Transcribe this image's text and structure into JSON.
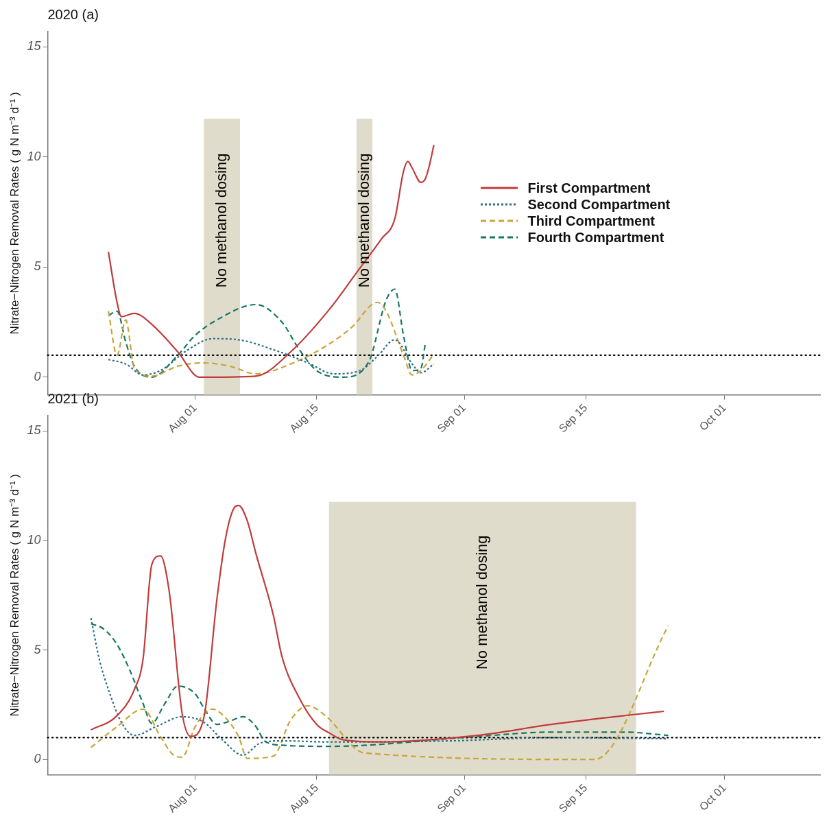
{
  "chart_data": [
    {
      "type": "line",
      "title": "2020 (a)",
      "ylabel": "Nitrate−Nitrogen Removal Rates ( g N m⁻³ d⁻¹ )",
      "xlim": [
        "2020-07-15",
        "2020-10-12"
      ],
      "xticks": [
        {
          "value": "2020-08-01",
          "label": "Aug 01"
        },
        {
          "value": "2020-08-15",
          "label": "Aug 15"
        },
        {
          "value": "2020-09-01",
          "label": "Sep 01"
        },
        {
          "value": "2020-09-15",
          "label": "Sep 15"
        },
        {
          "value": "2020-10-01",
          "label": "Oct 01"
        }
      ],
      "ylim": [
        -0.8,
        15.7
      ],
      "yticks": [
        0,
        5,
        10,
        15
      ],
      "grid": false,
      "legend": "right",
      "series": [
        {
          "name": "First Compartment",
          "color": "#c23b3b",
          "line_style": "solid",
          "x": [
            "2020-07-22",
            "2020-07-23",
            "2020-07-23T12:00",
            "2020-07-25",
            "2020-07-27",
            "2020-07-30",
            "2020-08-01T12:00",
            "2020-08-08",
            "2020-08-12",
            "2020-08-16T12:00",
            "2020-08-19T12:00",
            "2020-08-22T12:00",
            "2020-08-24",
            "2020-08-25",
            "2020-08-25T12:00",
            "2020-08-26",
            "2020-08-27",
            "2020-08-27T12:00",
            "2020-08-28",
            "2020-08-28T12:00"
          ],
          "values": [
            5.7,
            3.4,
            2.75,
            2.9,
            2.4,
            1.15,
            0,
            0.05,
            1.15,
            3.1,
            4.7,
            6.3,
            7.2,
            9.35,
            9.8,
            9.5,
            8.85,
            9.0,
            9.65,
            10.55
          ]
        },
        {
          "name": "Second Compartment",
          "color": "#2b6f8c",
          "line_style": "dotted",
          "x": [
            "2020-07-22",
            "2020-07-24",
            "2020-07-26",
            "2020-07-28",
            "2020-07-31",
            "2020-08-03",
            "2020-08-06",
            "2020-08-10",
            "2020-08-14",
            "2020-08-17",
            "2020-08-20",
            "2020-08-22",
            "2020-08-24",
            "2020-08-26",
            "2020-08-27",
            "2020-08-28T12:00"
          ],
          "values": [
            0.8,
            0.6,
            0.1,
            0.3,
            1.2,
            1.75,
            1.7,
            1.25,
            0.65,
            0.15,
            0.3,
            0.95,
            1.7,
            0.6,
            0.2,
            0.6
          ]
        },
        {
          "name": "Third Compartment",
          "color": "#c9a43c",
          "line_style": "dashed",
          "x": [
            "2020-07-22",
            "2020-07-23",
            "2020-07-24",
            "2020-07-25",
            "2020-07-27",
            "2020-07-30",
            "2020-08-02",
            "2020-08-05",
            "2020-08-08",
            "2020-08-12",
            "2020-08-16",
            "2020-08-19",
            "2020-08-22",
            "2020-08-23",
            "2020-08-25",
            "2020-08-26",
            "2020-08-27",
            "2020-08-28T12:00"
          ],
          "values": [
            3.0,
            1.0,
            2.6,
            0.4,
            0.05,
            0.5,
            0.65,
            0.5,
            0.15,
            0.6,
            1.4,
            2.25,
            3.4,
            3.0,
            1.0,
            0.1,
            0.3,
            1.05
          ]
        },
        {
          "name": "Fourth Compartment",
          "color": "#17785f",
          "line_style": "dashed",
          "x": [
            "2020-07-22",
            "2020-07-23",
            "2020-07-24",
            "2020-07-25",
            "2020-07-27",
            "2020-07-30",
            "2020-08-01",
            "2020-08-03T12:00",
            "2020-08-08",
            "2020-08-11",
            "2020-08-13",
            "2020-08-15",
            "2020-08-18",
            "2020-08-21",
            "2020-08-23",
            "2020-08-24",
            "2020-08-25",
            "2020-08-26",
            "2020-08-27",
            "2020-08-27T12:00"
          ],
          "values": [
            2.8,
            3.0,
            1.6,
            0.5,
            0,
            1.0,
            1.9,
            2.6,
            3.3,
            2.5,
            1.25,
            0.3,
            0,
            0.7,
            3.5,
            4.0,
            1.9,
            0.3,
            0.4,
            1.5
          ]
        }
      ],
      "ref_lines": [
        {
          "axis": "y",
          "value": 1,
          "color": "#000000",
          "line_style": "dotted"
        }
      ],
      "bands": [
        {
          "axis": "x",
          "from": "2020-08-02",
          "to": "2020-08-06T04:00",
          "label": "No methanol dosing",
          "color": "#e0dccb"
        },
        {
          "axis": "x",
          "from": "2020-08-19T14:00",
          "to": "2020-08-21T10:00",
          "label": "No methanol dosing",
          "color": "#e0dccb"
        }
      ]
    },
    {
      "type": "line",
      "title": "2021 (b)",
      "ylabel": "Nitrate−Nitrogen Removal Rates ( g N m⁻³ d⁻¹ )",
      "xlim": [
        "2021-07-15",
        "2021-10-12"
      ],
      "xticks": [
        {
          "value": "2021-08-01",
          "label": "Aug 01"
        },
        {
          "value": "2021-08-15",
          "label": "Aug 15"
        },
        {
          "value": "2021-09-01",
          "label": "Sep 01"
        },
        {
          "value": "2021-09-15",
          "label": "Sep 15"
        },
        {
          "value": "2021-10-01",
          "label": "Oct 01"
        }
      ],
      "ylim": [
        -0.7,
        15.7
      ],
      "yticks": [
        0,
        5,
        10,
        15
      ],
      "grid": false,
      "series": [
        {
          "color": "#c23b3b",
          "line_style": "solid",
          "x": [
            "2021-07-20",
            "2021-07-23",
            "2021-07-25",
            "2021-07-26",
            "2021-07-27",
            "2021-07-28",
            "2021-07-29",
            "2021-07-30T12:00",
            "2021-07-31T12:00",
            "2021-08-02",
            "2021-08-03T12:00",
            "2021-08-04T12:00",
            "2021-08-05T12:00",
            "2021-08-06",
            "2021-08-07",
            "2021-08-08",
            "2021-08-10",
            "2021-08-11",
            "2021-08-13",
            "2021-08-15",
            "2021-08-16T12:00",
            "2021-08-18",
            "2021-08-22",
            "2021-09-02T12:00",
            "2021-09-11",
            "2021-09-20T12:00",
            "2021-09-24"
          ],
          "values": [
            1.35,
            2.0,
            3.2,
            4.6,
            8.9,
            9.3,
            7.7,
            2.1,
            1.05,
            1.9,
            7.3,
            10.1,
            11.5,
            11.6,
            10.9,
            9.4,
            6.6,
            4.7,
            2.8,
            1.6,
            1.2,
            0.9,
            0.8,
            1.1,
            1.6,
            2.05,
            2.2
          ]
        },
        {
          "color": "#2b6f8c",
          "line_style": "dotted",
          "x": [
            "2021-07-20",
            "2021-07-21",
            "2021-07-22",
            "2021-07-23T12:00",
            "2021-07-25",
            "2021-07-27T12:00",
            "2021-07-30T12:00",
            "2021-08-02",
            "2021-08-04",
            "2021-08-06T12:00",
            "2021-08-08T12:00",
            "2021-08-11",
            "2021-08-16T12:00",
            "2021-08-30T12:00",
            "2021-09-11",
            "2021-09-24T12:00"
          ],
          "values": [
            6.45,
            4.5,
            3.2,
            1.7,
            1.1,
            1.5,
            1.95,
            1.7,
            0.95,
            0.2,
            0.75,
            0.85,
            0.8,
            0.85,
            1.0,
            0.95
          ]
        },
        {
          "color": "#c9a43c",
          "line_style": "dashed",
          "x": [
            "2021-07-20",
            "2021-07-23",
            "2021-07-26",
            "2021-07-28",
            "2021-07-29T12:00",
            "2021-07-30T12:00",
            "2021-08-01",
            "2021-08-03",
            "2021-08-04T12:00",
            "2021-08-06",
            "2021-08-07",
            "2021-08-10",
            "2021-08-12",
            "2021-08-14",
            "2021-08-16",
            "2021-08-20T12:00",
            "2021-09-16",
            "2021-09-24T12:00"
          ],
          "values": [
            0.55,
            1.5,
            2.3,
            1.05,
            0.2,
            0.1,
            1.5,
            2.3,
            1.9,
            1.05,
            0.05,
            0.15,
            1.8,
            2.45,
            2.0,
            0.3,
            0,
            6.1
          ]
        },
        {
          "color": "#17785f",
          "line_style": "dashed",
          "x": [
            "2021-07-20",
            "2021-07-21T12:00",
            "2021-07-23",
            "2021-07-24T12:00",
            "2021-07-26",
            "2021-07-27",
            "2021-07-28T12:00",
            "2021-07-30",
            "2021-08-01",
            "2021-08-02",
            "2021-08-03T12:00",
            "2021-08-05",
            "2021-08-06T12:00",
            "2021-08-08",
            "2021-08-09",
            "2021-08-11",
            "2021-08-16T12:00",
            "2021-09-02T12:00",
            "2021-09-11",
            "2021-09-19T12:00",
            "2021-09-24T12:00"
          ],
          "values": [
            6.2,
            5.95,
            5.25,
            4.05,
            2.55,
            1.65,
            2.55,
            3.35,
            3.0,
            2.35,
            1.6,
            1.75,
            1.95,
            1.5,
            0.85,
            0.65,
            0.6,
            1.05,
            1.25,
            1.25,
            1.1
          ]
        }
      ],
      "ref_lines": [
        {
          "axis": "y",
          "value": 1,
          "color": "#000000",
          "line_style": "dotted"
        }
      ],
      "bands": [
        {
          "axis": "x",
          "from": "2021-08-16T10:00",
          "to": "2021-09-20T19:00",
          "label": "No methanol dosing",
          "color": "#e0dccb"
        }
      ]
    }
  ]
}
